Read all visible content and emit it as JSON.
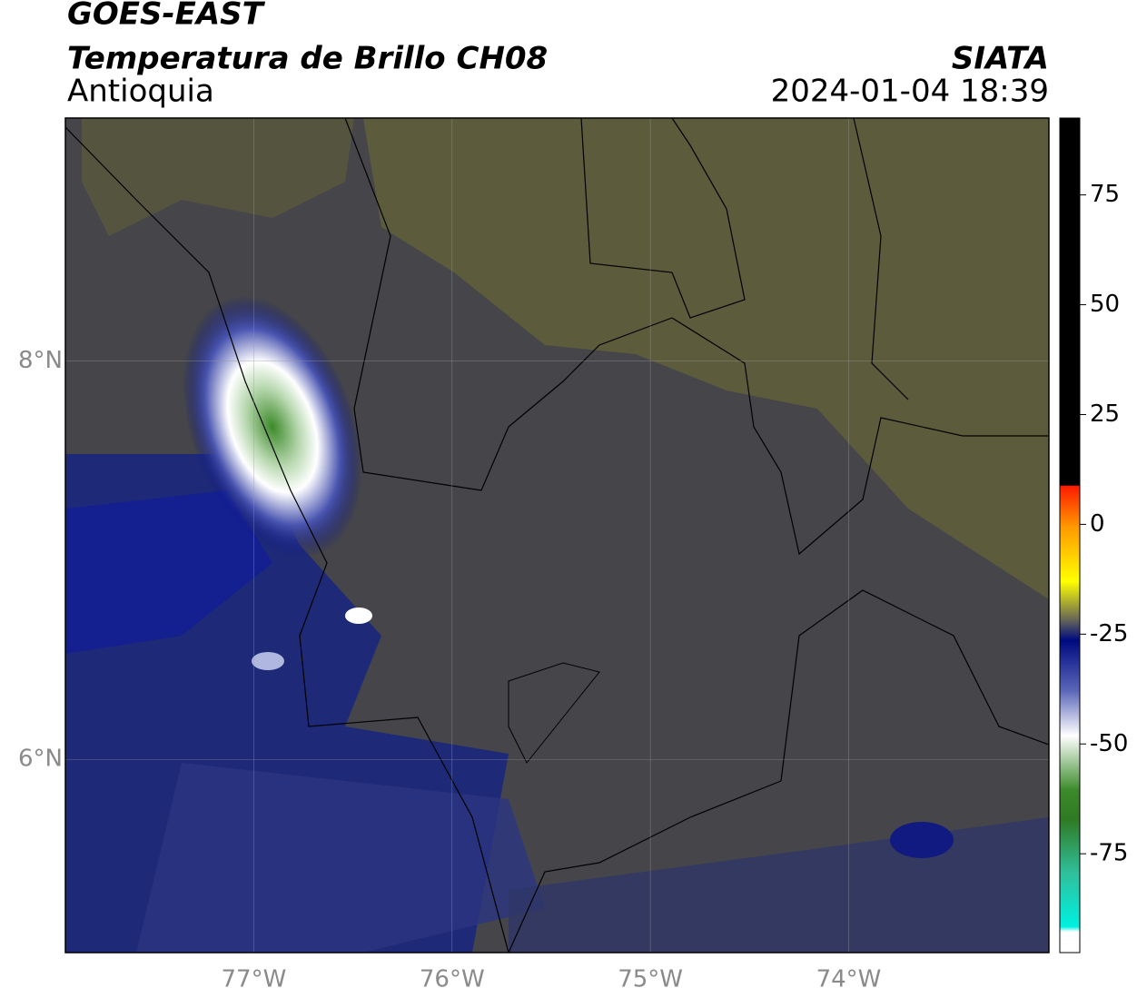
{
  "header": {
    "satellite": "GOES-EAST",
    "product": "Temperatura de Brillo CH08",
    "region": "Antioquia",
    "source": "SIATA",
    "datetime": "2024-01-04 18:39"
  },
  "map": {
    "xlim": [
      -77.95,
      -72.99
    ],
    "ylim": [
      5.03,
      9.22
    ],
    "xticks": [
      {
        "value": -77,
        "label": "77°W"
      },
      {
        "value": -76,
        "label": "76°W"
      },
      {
        "value": -75,
        "label": "75°W"
      },
      {
        "value": -74,
        "label": "74°W"
      }
    ],
    "yticks": [
      {
        "value": 8,
        "label": "8°N"
      },
      {
        "value": 6,
        "label": "6°N"
      }
    ],
    "grid": true
  },
  "colorbar": {
    "lim": [
      -97.5,
      92.5
    ],
    "ticks": [
      75,
      50,
      25,
      0,
      -25,
      -50,
      -75
    ]
  }
}
